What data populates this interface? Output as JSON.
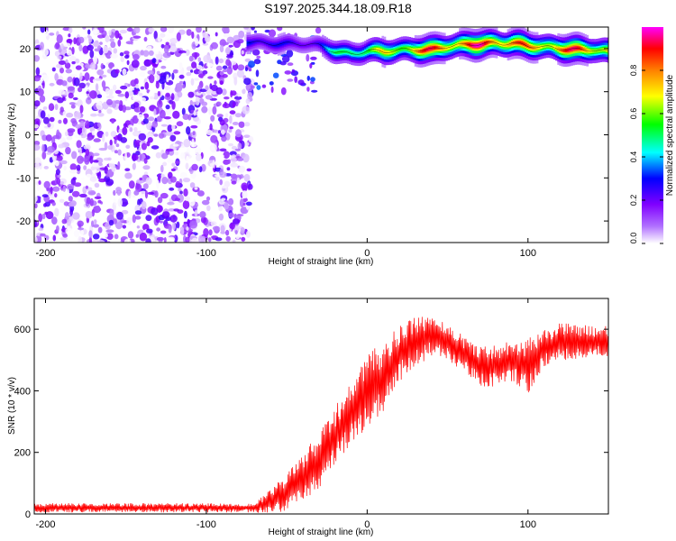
{
  "title": "S197.2025.344.18.09.R18",
  "chart_data": [
    {
      "type": "heatmap",
      "xlabel": "Height of straight line (km)",
      "ylabel": "Frequency (Hz)",
      "xlim": [
        -207,
        150
      ],
      "ylim": [
        -25,
        25
      ],
      "xticks": [
        -200,
        -100,
        0,
        100
      ],
      "yticks": [
        -20,
        -10,
        0,
        10,
        20
      ],
      "colorbar": {
        "label": "Normalized spectral amplitude",
        "range": [
          0.0,
          1.0
        ],
        "ticks": [
          0.0,
          0.2,
          0.4,
          0.6,
          0.8
        ],
        "colors": [
          "#ffffff",
          "#8a00ff",
          "#0000ff",
          "#00ffff",
          "#00ff00",
          "#ffff00",
          "#ff8000",
          "#ff0000",
          "#ff00ff"
        ]
      },
      "noise_region_x": [
        -207,
        -72
      ],
      "noise_amplitude_range": [
        0.0,
        0.25
      ],
      "ridge": {
        "x": [
          -75,
          -60,
          -45,
          -30,
          -20,
          -10,
          0,
          10,
          20,
          30,
          40,
          50,
          60,
          70,
          80,
          90,
          100,
          110,
          120,
          130,
          140,
          150
        ],
        "frequency": [
          21.5,
          21.5,
          21,
          20.5,
          19.5,
          19,
          19.5,
          19,
          19.5,
          20,
          20,
          20.5,
          20.5,
          21,
          21.5,
          21.5,
          20.5,
          20,
          20,
          20,
          20,
          19
        ],
        "amplitude": [
          0.35,
          0.3,
          0.25,
          0.3,
          0.5,
          0.65,
          0.6,
          0.7,
          0.75,
          0.85,
          0.9,
          0.9,
          0.9,
          0.95,
          0.95,
          0.9,
          0.8,
          0.85,
          0.9,
          0.9,
          0.85,
          0.8
        ]
      }
    },
    {
      "type": "line",
      "xlabel": "Height of straight line (km)",
      "ylabel": "SNR (10 * v/v)",
      "xlim": [
        -207,
        150
      ],
      "ylim": [
        0,
        700
      ],
      "xticks": [
        -200,
        -100,
        0,
        100
      ],
      "yticks": [
        0,
        200,
        400,
        600
      ],
      "series": [
        {
          "color": "#ff0000",
          "envelope_x": [
            -207,
            -70,
            -60,
            -50,
            -40,
            -30,
            -20,
            -10,
            0,
            10,
            20,
            30,
            40,
            50,
            60,
            70,
            80,
            90,
            100,
            110,
            120,
            130,
            140,
            150
          ],
          "envelope_mean": [
            20,
            20,
            40,
            70,
            120,
            170,
            250,
            330,
            400,
            440,
            520,
            560,
            580,
            560,
            520,
            480,
            480,
            500,
            480,
            540,
            560,
            560,
            560,
            560
          ],
          "envelope_spread": [
            15,
            15,
            40,
            60,
            80,
            90,
            100,
            100,
            120,
            120,
            90,
            80,
            70,
            60,
            60,
            70,
            70,
            70,
            90,
            60,
            60,
            60,
            50,
            50
          ]
        }
      ]
    }
  ]
}
